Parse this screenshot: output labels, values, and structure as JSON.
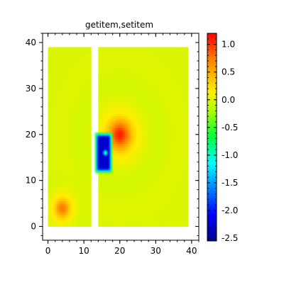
{
  "chart_data": {
    "type": "heatmap",
    "title": "getitem,setitem",
    "xlabel": "",
    "ylabel": "",
    "xlim": [
      -1.5,
      42
    ],
    "ylim": [
      -3,
      42
    ],
    "x_ticks": [
      "0",
      "10",
      "20",
      "30",
      "40"
    ],
    "y_ticks": [
      "0",
      "10",
      "20",
      "30",
      "40"
    ],
    "colorbar": {
      "range": [
        -2.55,
        1.2
      ],
      "ticks": [
        "1.0",
        "0.5",
        "0.0",
        "-0.5",
        "-1.0",
        "-1.5",
        "-2.0",
        "-2.5"
      ],
      "colormap": "jet"
    },
    "grid": false,
    "regions": [
      {
        "name": "left-panel",
        "x": [
          0,
          12
        ],
        "y": [
          0,
          39
        ],
        "background": 0.0
      },
      {
        "name": "right-panel",
        "x": [
          14,
          39
        ],
        "y": [
          0,
          39
        ],
        "background": 0.0
      }
    ],
    "features": [
      {
        "name": "small-hotspot",
        "x": 4,
        "y": 4,
        "peak": 1.0,
        "kind": "gaussian"
      },
      {
        "name": "hotspot",
        "x": 20,
        "y": 20,
        "peak": 1.2,
        "kind": "gaussian"
      },
      {
        "name": "cold-square",
        "x": [
          14,
          15,
          17
        ],
        "y": [
          12.5,
          16,
          19.5
        ],
        "value": -2.3,
        "kind": "square"
      },
      {
        "name": "cold-core",
        "x": 16,
        "y": 16,
        "value": -1.5,
        "kind": "spot"
      }
    ]
  }
}
